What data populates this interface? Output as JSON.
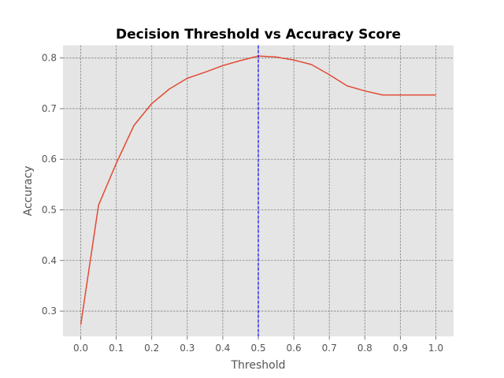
{
  "chart_data": {
    "type": "line",
    "title": "Decision Threshold vs Accuracy Score",
    "xlabel": "Threshold",
    "ylabel": "Accuracy",
    "xlim": [
      -0.05,
      1.05
    ],
    "ylim": [
      0.25,
      0.825
    ],
    "xticks": [
      0.0,
      0.1,
      0.2,
      0.3,
      0.4,
      0.5,
      0.6,
      0.7,
      0.8,
      0.9,
      1.0
    ],
    "xtick_labels": [
      "0.0",
      "0.1",
      "0.2",
      "0.3",
      "0.4",
      "0.5",
      "0.6",
      "0.7",
      "0.8",
      "0.9",
      "1.0"
    ],
    "yticks": [
      0.3,
      0.4,
      0.5,
      0.6,
      0.7,
      0.8
    ],
    "ytick_labels": [
      "0.3",
      "0.4",
      "0.5",
      "0.6",
      "0.7",
      "0.8"
    ],
    "grid": true,
    "series": [
      {
        "x": [
          0.0,
          0.05,
          0.1,
          0.15,
          0.2,
          0.25,
          0.3,
          0.35,
          0.4,
          0.45,
          0.5,
          0.55,
          0.6,
          0.65,
          0.7,
          0.75,
          0.8,
          0.85,
          0.9,
          0.95,
          1.0
        ],
        "y": [
          0.273,
          0.509,
          0.592,
          0.667,
          0.71,
          0.739,
          0.76,
          0.772,
          0.785,
          0.795,
          0.804,
          0.802,
          0.796,
          0.787,
          0.767,
          0.745,
          0.735,
          0.727,
          0.727,
          0.727,
          0.727
        ],
        "color": "#E24A33"
      }
    ],
    "vline": {
      "x": 0.5,
      "color": "#0000ff",
      "style": "dashed"
    }
  }
}
